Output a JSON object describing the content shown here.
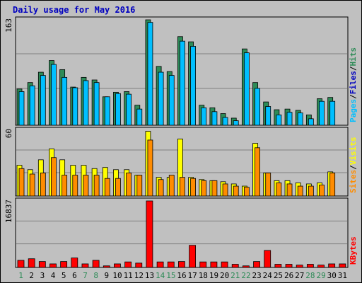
{
  "chart_data": {
    "title": "Daily usage for May 2016",
    "days": [
      "1",
      "2",
      "3",
      "4",
      "5",
      "6",
      "7",
      "8",
      "9",
      "10",
      "11",
      "12",
      "13",
      "14",
      "15",
      "16",
      "17",
      "18",
      "19",
      "20",
      "21",
      "22",
      "23",
      "24",
      "25",
      "26",
      "27",
      "28",
      "29",
      "30",
      "31"
    ],
    "weekend_days": [
      "1",
      "7",
      "8",
      "14",
      "15",
      "21",
      "22",
      "28",
      "29"
    ],
    "colors": {
      "pages": "#2e8b57",
      "files": "#00bfff",
      "hits": "#008080",
      "sites": "#ff8c00",
      "visits": "#ffff00",
      "kbytes": "#ff0000",
      "weekend_label": "#2e8b57",
      "weekday_label": "#000000"
    },
    "panels": [
      {
        "type": "bar",
        "ymax": "163",
        "ylim": [
          0,
          163
        ],
        "legend": [
          {
            "label": "Pages",
            "color": "#00bfff"
          },
          {
            "label": "/",
            "color": "#000000"
          },
          {
            "label": "Files",
            "color": "#0000c0"
          },
          {
            "label": "/",
            "color": "#000000"
          },
          {
            "label": "Hits",
            "color": "#2e8b57"
          }
        ],
        "series": [
          {
            "name": "Hits",
            "values": [
              56,
              66,
              82,
              100,
              86,
              59,
              74,
              70,
              44,
              51,
              52,
              31,
              163,
              91,
              83,
              137,
              129,
              31,
              27,
              18,
              11,
              118,
              66,
              36,
              24,
              25,
              23,
              16,
              41,
              43,
              0
            ]
          },
          {
            "name": "Files",
            "values": [
              52,
              61,
              77,
              94,
              74,
              58,
              69,
              66,
              44,
              49,
              48,
              25,
              159,
              82,
              77,
              130,
              122,
              27,
              21,
              12,
              7,
              112,
              57,
              29,
              16,
              20,
              19,
              10,
              37,
              37,
              0
            ]
          }
        ]
      },
      {
        "type": "bar",
        "ymax": "60",
        "ylim": [
          0,
          60
        ],
        "legend": [
          {
            "label": "Sites",
            "color": "#ff8c00"
          },
          {
            "label": "/",
            "color": "#000000"
          },
          {
            "label": "Visits",
            "color": "#ffff00"
          }
        ],
        "series": [
          {
            "name": "Visits",
            "values": [
              28,
              24,
              33,
              43,
              33,
              28,
              28,
              25,
              26,
              24,
              24,
              19,
              59,
              17,
              17,
              52,
              17,
              15,
              14,
              13,
              11,
              9,
              48,
              21,
              14,
              14,
              12,
              11,
              12,
              22,
              0
            ]
          },
          {
            "name": "Sites",
            "values": [
              25,
              20,
              21,
              35,
              19,
              19,
              19,
              19,
              16,
              16,
              21,
              19,
              51,
              15,
              19,
              17,
              16,
              14,
              14,
              11,
              9,
              8,
              44,
              21,
              12,
              11,
              9,
              9,
              10,
              21,
              0
            ]
          }
        ]
      },
      {
        "type": "bar",
        "ymax": "16837",
        "ylim": [
          0,
          16837
        ],
        "legend": [
          {
            "label": "KBytes",
            "color": "#ff0000"
          }
        ],
        "series": [
          {
            "name": "KBytes",
            "values": [
              1800,
              2200,
              1500,
              900,
              1500,
              2400,
              900,
              1800,
              400,
              900,
              1400,
              1100,
              16837,
              1400,
              1400,
              1500,
              5600,
              1400,
              1400,
              1400,
              800,
              400,
              1500,
              4300,
              800,
              800,
              600,
              800,
              600,
              900,
              900
            ]
          }
        ]
      }
    ]
  }
}
